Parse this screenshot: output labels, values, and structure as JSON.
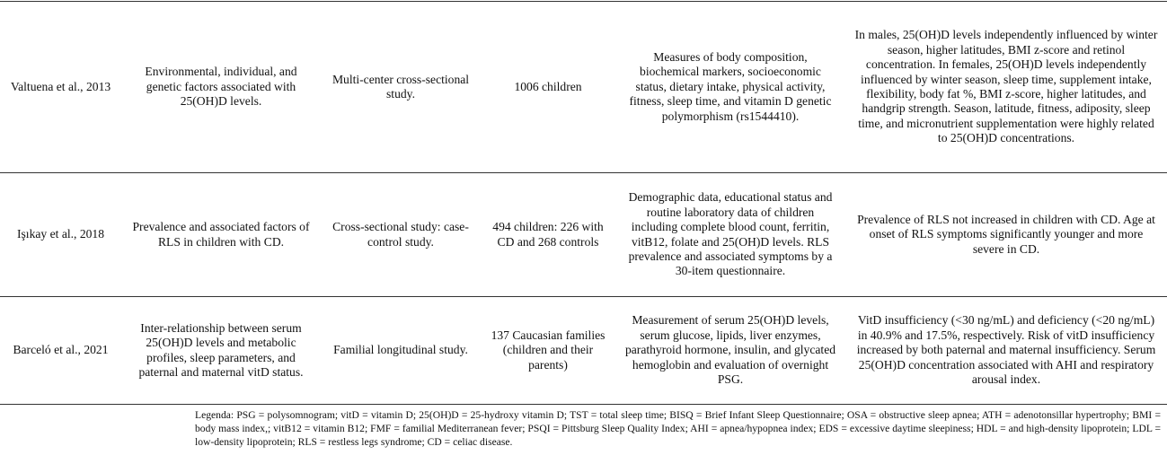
{
  "table": {
    "rows": [
      [
        "Valtuena et al., 2013",
        "Environmental, individual, and genetic factors associated with 25(OH)D levels.",
        "Multi-center cross-sectional study.",
        "1006 children",
        "Measures of body composition, biochemical markers, socioeconomic status, dietary intake, physical activity, fitness, sleep time, and vitamin D genetic polymorphism (rs1544410).",
        "In males, 25(OH)D levels independently influenced by winter season, higher latitudes, BMI z-score and retinol concentration. In females, 25(OH)D levels independently influenced by winter season, sleep time, supplement intake, flexibility, body fat %, BMI z-score, higher latitudes, and handgrip strength. Season, latitude, fitness, adiposity, sleep time, and micronutrient supplementation were highly related to 25(OH)D concentrations."
      ],
      [
        "Işıkay et al., 2018",
        "Prevalence and associated factors of RLS in children with CD.",
        "Cross-sectional study: case-control study.",
        "494 children: 226 with CD and 268 controls",
        "Demographic data, educational status and routine laboratory data of children including complete blood count, ferritin, vitB12, folate and 25(OH)D levels. RLS prevalence and associated symptoms by a 30-item questionnaire.",
        "Prevalence of RLS not increased in children with CD. Age at onset of RLS symptoms significantly younger and more severe in CD."
      ],
      [
        "Barceló et al., 2021",
        "Inter-relationship between serum 25(OH)D levels and metabolic profiles, sleep parameters, and paternal and maternal vitD status.",
        "Familial longitudinal study.",
        "137 Caucasian families (children and their parents)",
        "Measurement of serum 25(OH)D levels, serum glucose, lipids, liver enzymes, parathyroid hormone, insulin, and glycated hemoglobin and evaluation of overnight PSG.",
        "VitD insufficiency (<30 ng/mL) and deficiency (<20 ng/mL) in 40.9% and 17.5%, respectively. Risk of vitD insufficiency increased by both paternal and maternal insufficiency. Serum 25(OH)D concentration associated with AHI and respiratory arousal index."
      ]
    ]
  },
  "legend": "Legenda: PSG = polysomnogram; vitD = vitamin D; 25(OH)D = 25-hydroxy vitamin D; TST = total sleep time; BISQ = Brief Infant Sleep Questionnaire; OSA = obstructive sleep apnea; ATH = adenotonsillar hypertrophy; BMI = body mass index,; vitB12 = vitamin B12; FMF = familial Mediterranean fever; PSQI = Pittsburg Sleep Quality Index; AHI = apnea/hypopnea index; EDS = excessive daytime sleepiness; HDL = and high-density lipoprotein; LDL = low-density lipoprotein; RLS = restless legs syndrome; CD = celiac disease."
}
